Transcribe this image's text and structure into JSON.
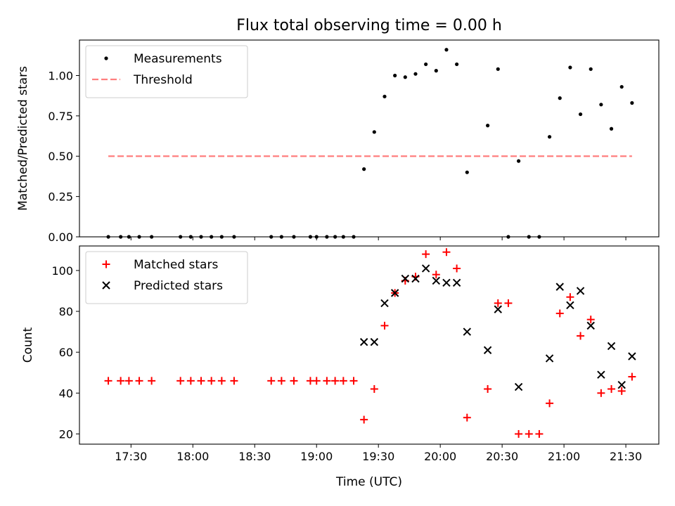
{
  "figure": {
    "title": "Flux total observing time = 0.00 h",
    "xlabel": "Time (UTC)",
    "xticks": [
      "17:30",
      "18:00",
      "18:30",
      "19:00",
      "19:30",
      "20:00",
      "20:30",
      "21:00",
      "21:30"
    ]
  },
  "chart_data": [
    {
      "type": "scatter",
      "ylabel": "Matched/Predicted stars",
      "ylim": [
        0,
        1.22
      ],
      "yticks": [
        "0.00",
        "0.25",
        "0.50",
        "0.75",
        "1.00"
      ],
      "legend_position": "top-left",
      "threshold": {
        "name": "Threshold",
        "value": 0.5,
        "x_range": [
          "17:19",
          "21:33"
        ],
        "color": "#ff7f7f"
      },
      "series": [
        {
          "name": "Measurements",
          "color": "#000000",
          "points": [
            [
              "17:19",
              0.0
            ],
            [
              "17:25",
              0.0
            ],
            [
              "17:29",
              0.0
            ],
            [
              "17:34",
              0.0
            ],
            [
              "17:40",
              0.0
            ],
            [
              "17:54",
              0.0
            ],
            [
              "17:59",
              0.0
            ],
            [
              "18:04",
              0.0
            ],
            [
              "18:09",
              0.0
            ],
            [
              "18:14",
              0.0
            ],
            [
              "18:20",
              0.0
            ],
            [
              "18:38",
              0.0
            ],
            [
              "18:43",
              0.0
            ],
            [
              "18:49",
              0.0
            ],
            [
              "18:57",
              0.0
            ],
            [
              "19:00",
              0.0
            ],
            [
              "19:05",
              0.0
            ],
            [
              "19:09",
              0.0
            ],
            [
              "19:13",
              0.0
            ],
            [
              "19:18",
              0.0
            ],
            [
              "19:23",
              0.42
            ],
            [
              "19:28",
              0.65
            ],
            [
              "19:33",
              0.87
            ],
            [
              "19:38",
              1.0
            ],
            [
              "19:43",
              0.99
            ],
            [
              "19:48",
              1.01
            ],
            [
              "19:53",
              1.07
            ],
            [
              "19:58",
              1.03
            ],
            [
              "20:03",
              1.16
            ],
            [
              "20:08",
              1.07
            ],
            [
              "20:13",
              0.4
            ],
            [
              "20:23",
              0.69
            ],
            [
              "20:28",
              1.04
            ],
            [
              "20:33",
              0.0
            ],
            [
              "20:38",
              0.47
            ],
            [
              "20:43",
              0.0
            ],
            [
              "20:48",
              0.0
            ],
            [
              "20:53",
              0.62
            ],
            [
              "20:58",
              0.86
            ],
            [
              "21:03",
              1.05
            ],
            [
              "21:08",
              0.76
            ],
            [
              "21:13",
              1.04
            ],
            [
              "21:18",
              0.82
            ],
            [
              "21:23",
              0.67
            ],
            [
              "21:28",
              0.93
            ],
            [
              "21:33",
              0.83
            ]
          ]
        }
      ]
    },
    {
      "type": "scatter",
      "ylabel": "Count",
      "ylim": [
        15,
        112
      ],
      "yticks": [
        "20",
        "40",
        "60",
        "80",
        "100"
      ],
      "legend_position": "top-left",
      "series": [
        {
          "name": "Matched stars",
          "marker": "+",
          "color": "#ff0000",
          "points": [
            [
              "17:19",
              46
            ],
            [
              "17:25",
              46
            ],
            [
              "17:29",
              46
            ],
            [
              "17:34",
              46
            ],
            [
              "17:40",
              46
            ],
            [
              "17:54",
              46
            ],
            [
              "17:59",
              46
            ],
            [
              "18:04",
              46
            ],
            [
              "18:09",
              46
            ],
            [
              "18:14",
              46
            ],
            [
              "18:20",
              46
            ],
            [
              "18:38",
              46
            ],
            [
              "18:43",
              46
            ],
            [
              "18:49",
              46
            ],
            [
              "18:57",
              46
            ],
            [
              "19:00",
              46
            ],
            [
              "19:05",
              46
            ],
            [
              "19:09",
              46
            ],
            [
              "19:13",
              46
            ],
            [
              "19:18",
              46
            ],
            [
              "19:23",
              27
            ],
            [
              "19:28",
              42
            ],
            [
              "19:33",
              73
            ],
            [
              "19:38",
              89
            ],
            [
              "19:43",
              95
            ],
            [
              "19:48",
              97
            ],
            [
              "19:53",
              108
            ],
            [
              "19:58",
              98
            ],
            [
              "20:03",
              109
            ],
            [
              "20:08",
              101
            ],
            [
              "20:13",
              28
            ],
            [
              "20:23",
              42
            ],
            [
              "20:28",
              84
            ],
            [
              "20:33",
              84
            ],
            [
              "20:38",
              20
            ],
            [
              "20:43",
              20
            ],
            [
              "20:48",
              20
            ],
            [
              "20:53",
              35
            ],
            [
              "20:58",
              79
            ],
            [
              "21:03",
              87
            ],
            [
              "21:08",
              68
            ],
            [
              "21:13",
              76
            ],
            [
              "21:18",
              40
            ],
            [
              "21:23",
              42
            ],
            [
              "21:28",
              41
            ],
            [
              "21:33",
              48
            ]
          ]
        },
        {
          "name": "Predicted stars",
          "marker": "x",
          "color": "#000000",
          "points": [
            [
              "19:23",
              65
            ],
            [
              "19:28",
              65
            ],
            [
              "19:33",
              84
            ],
            [
              "19:38",
              89
            ],
            [
              "19:43",
              96
            ],
            [
              "19:48",
              96
            ],
            [
              "19:53",
              101
            ],
            [
              "19:58",
              95
            ],
            [
              "20:03",
              94
            ],
            [
              "20:08",
              94
            ],
            [
              "20:13",
              70
            ],
            [
              "20:23",
              61
            ],
            [
              "20:28",
              81
            ],
            [
              "20:38",
              43
            ],
            [
              "20:53",
              57
            ],
            [
              "20:58",
              92
            ],
            [
              "21:03",
              83
            ],
            [
              "21:08",
              90
            ],
            [
              "21:13",
              73
            ],
            [
              "21:18",
              49
            ],
            [
              "21:23",
              63
            ],
            [
              "21:28",
              44
            ],
            [
              "21:33",
              58
            ]
          ]
        }
      ]
    }
  ]
}
